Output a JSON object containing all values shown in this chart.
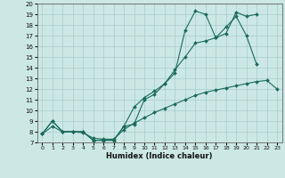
{
  "xlabel": "Humidex (Indice chaleur)",
  "background_color": "#cce8e4",
  "grid_color": "#a8ccc8",
  "line_color": "#1a6b5a",
  "xlim": [
    -0.5,
    23.5
  ],
  "ylim": [
    7,
    20
  ],
  "xticks": [
    0,
    1,
    2,
    3,
    4,
    5,
    6,
    7,
    8,
    9,
    10,
    11,
    12,
    13,
    14,
    15,
    16,
    17,
    18,
    19,
    20,
    21,
    22,
    23
  ],
  "yticks": [
    7,
    8,
    9,
    10,
    11,
    12,
    13,
    14,
    15,
    16,
    17,
    18,
    19,
    20
  ],
  "line1_x": [
    0,
    1,
    2,
    3,
    4,
    5,
    6,
    7,
    8,
    9,
    10,
    11,
    12,
    13,
    14,
    15,
    16,
    17,
    18,
    19,
    20,
    21
  ],
  "line1_y": [
    7.8,
    9.0,
    8.0,
    8.0,
    8.0,
    7.2,
    7.2,
    7.2,
    8.5,
    10.3,
    11.2,
    11.8,
    12.5,
    13.8,
    15.0,
    16.3,
    16.5,
    16.8,
    17.8,
    18.8,
    17.0,
    14.3
  ],
  "line2_x": [
    0,
    1,
    2,
    3,
    4,
    5,
    6,
    7,
    8,
    9,
    10,
    11,
    12,
    13,
    14,
    15,
    16,
    17,
    18,
    19,
    20,
    21
  ],
  "line2_y": [
    7.8,
    9.0,
    8.0,
    8.0,
    8.0,
    7.2,
    7.2,
    7.2,
    8.5,
    8.7,
    11.0,
    11.5,
    12.5,
    13.5,
    17.5,
    19.3,
    19.0,
    16.8,
    17.2,
    19.2,
    18.8,
    19.0
  ],
  "line3_x": [
    0,
    1,
    2,
    3,
    4,
    5,
    6,
    7,
    8,
    9,
    10,
    11,
    12,
    13,
    14,
    15,
    16,
    17,
    18,
    19,
    20,
    21,
    22,
    23
  ],
  "line3_y": [
    7.8,
    8.5,
    8.0,
    8.0,
    7.9,
    7.4,
    7.3,
    7.3,
    8.2,
    8.8,
    9.3,
    9.8,
    10.2,
    10.6,
    11.0,
    11.4,
    11.7,
    11.9,
    12.1,
    12.3,
    12.5,
    12.7,
    12.8,
    12.0
  ]
}
